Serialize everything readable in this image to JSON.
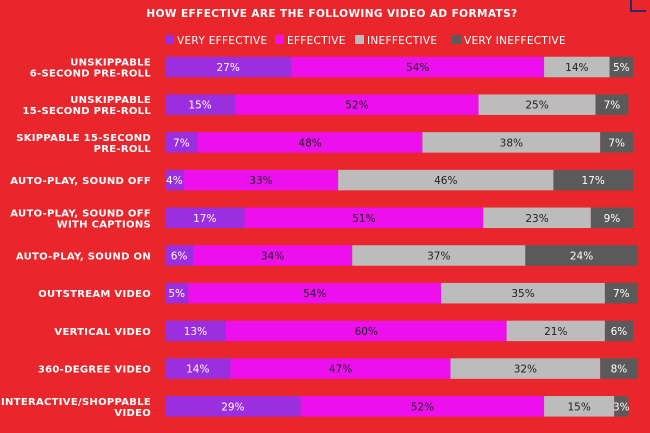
{
  "chart_data": {
    "type": "bar",
    "orientation": "horizontal",
    "stacked": true,
    "title": "HOW EFFECTIVE ARE THE FOLLOWING VIDEO AD FORMATS?",
    "categories": [
      [
        "UNSKIPPABLE",
        "6-SECOND PRE-ROLL"
      ],
      [
        "UNSKIPPABLE",
        "15-SECOND PRE-ROLL"
      ],
      [
        "SKIPPABLE 15-SECOND",
        "PRE-ROLL"
      ],
      [
        "AUTO-PLAY, SOUND OFF"
      ],
      [
        "AUTO-PLAY, SOUND OFF",
        "WITH CAPTIONS"
      ],
      [
        "AUTO-PLAY, SOUND ON"
      ],
      [
        "OUTSTREAM VIDEO"
      ],
      [
        "VERTICAL VIDEO"
      ],
      [
        "360-DEGREE VIDEO"
      ],
      [
        "INTERACTIVE/SHOPPABLE",
        "VIDEO"
      ]
    ],
    "series": [
      {
        "name": "VERY EFFECTIVE",
        "color": "#9b2fe0",
        "values": [
          27,
          15,
          7,
          4,
          17,
          6,
          5,
          13,
          14,
          29
        ]
      },
      {
        "name": "EFFECTIVE",
        "color": "#ec10ec",
        "values": [
          54,
          52,
          48,
          33,
          51,
          34,
          54,
          60,
          47,
          52
        ]
      },
      {
        "name": "INEFFECTIVE",
        "color": "#bcbcbc",
        "values": [
          14,
          25,
          38,
          46,
          23,
          37,
          35,
          21,
          32,
          15
        ]
      },
      {
        "name": "VERY INEFFECTIVE",
        "color": "#5a5a5a",
        "values": [
          5,
          7,
          7,
          17,
          9,
          24,
          7,
          6,
          8,
          3
        ]
      }
    ],
    "value_suffix": "%",
    "xlim": [
      0,
      100
    ],
    "legend": "top"
  }
}
